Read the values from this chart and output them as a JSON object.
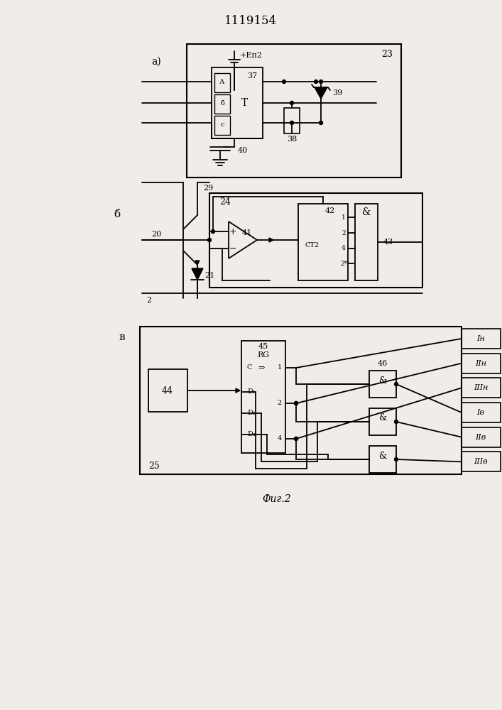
{
  "title": "1119154",
  "fig_caption": "Фиг.2",
  "bg_color": "#f0ede8",
  "label_a": "а)",
  "label_b": "б",
  "label_v": "в",
  "t23": "23",
  "t24": "24",
  "t25": "25",
  "tEp2": "+Еп2",
  "t37": "37",
  "t38": "38",
  "t39": "39",
  "t40": "40",
  "tT": "Т",
  "t29": "29",
  "t20": "20",
  "t21": "21",
  "t2": "2",
  "t41": "41",
  "t42": "42",
  "t43": "43",
  "tCT2": "СТ2",
  "t44": "44",
  "t45": "45",
  "t46": "46",
  "tRG": "RG",
  "tC": "C",
  "tD1": "D₁",
  "tD2": "D₂",
  "tD3": "D₃",
  "oIh": "Iн",
  "oIIh": "IIн",
  "oIIIh": "IIIн",
  "oIv": "Iв",
  "oIIv": "IIв",
  "oIIIv": "IIIв"
}
